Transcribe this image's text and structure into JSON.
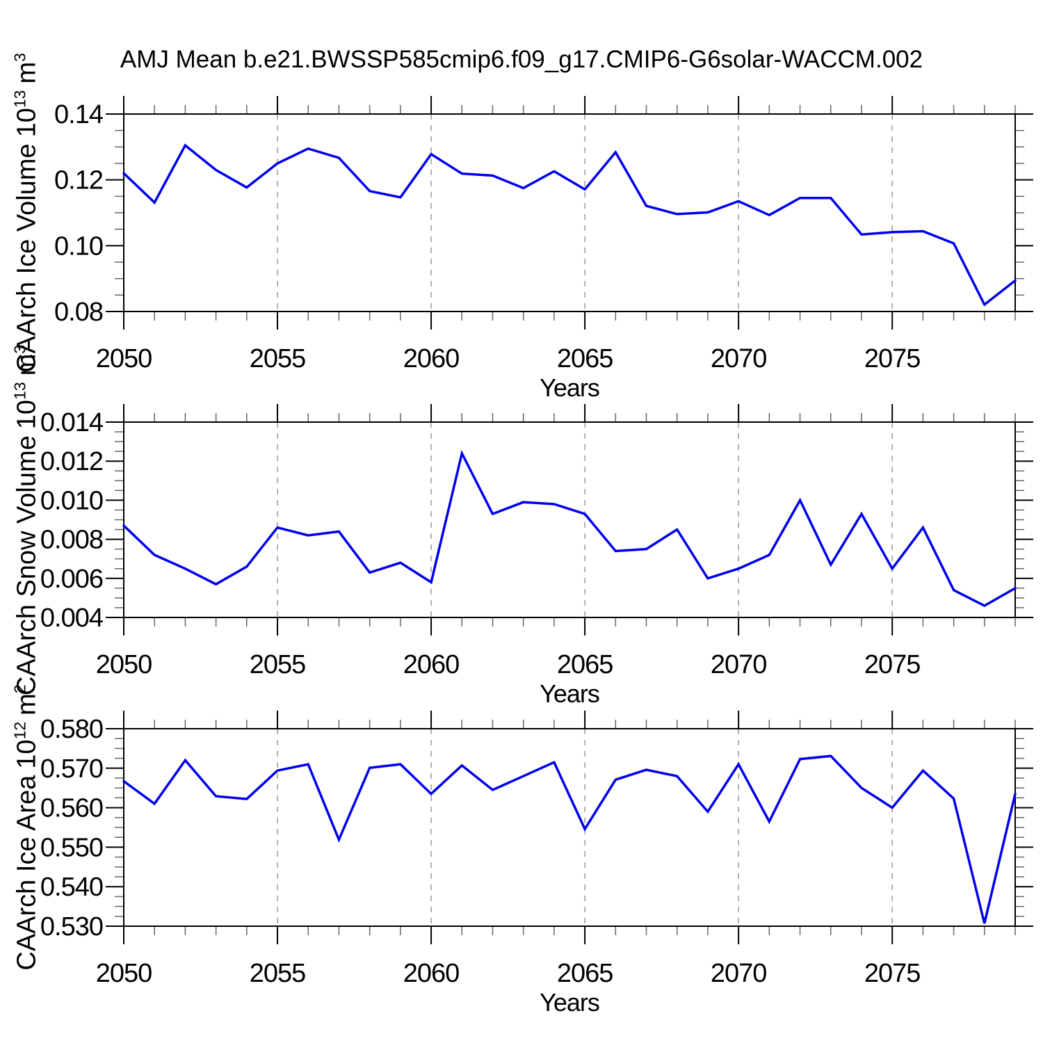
{
  "title": "AMJ Mean b.e21.BWSSP585cmip6.f09_g17.CMIP6-G6solar-WACCM.002",
  "colors": {
    "line": "#0000EE",
    "grid": "#999999",
    "axis": "#000000",
    "minor_tick": "#666666"
  },
  "chart_data": [
    {
      "type": "line",
      "id": "ice-volume",
      "ylabel_main": "CAArch Ice Volume",
      "ylabel_base": "10",
      "ylabel_exp": "13",
      "ylabel_unit": "m",
      "ylabel_unit_exp": "3",
      "xlabel": "Years",
      "xlim": [
        2050,
        2079
      ],
      "ylim": [
        0.08,
        0.14
      ],
      "xticks": [
        2050,
        2055,
        2060,
        2065,
        2070,
        2075
      ],
      "grid_years": [
        2055,
        2060,
        2065,
        2070,
        2075
      ],
      "yticks": [
        0.08,
        0.1,
        0.12,
        0.14
      ],
      "ytick_labels": [
        "0.08",
        "0.10",
        "0.12",
        "0.14"
      ],
      "yminor_step": 0.005,
      "x": [
        2050,
        2051,
        2052,
        2053,
        2054,
        2055,
        2056,
        2057,
        2058,
        2059,
        2060,
        2061,
        2062,
        2063,
        2064,
        2065,
        2066,
        2067,
        2068,
        2069,
        2070,
        2071,
        2072,
        2073,
        2074,
        2075,
        2076,
        2077,
        2078,
        2079
      ],
      "values": [
        0.122,
        0.1131,
        0.1305,
        0.123,
        0.1177,
        0.125,
        0.1295,
        0.1267,
        0.1166,
        0.1147,
        0.1278,
        0.1219,
        0.1213,
        0.1175,
        0.1226,
        0.1171,
        0.1284,
        0.1121,
        0.1096,
        0.1101,
        0.1135,
        0.1093,
        0.1145,
        0.1145,
        0.1034,
        0.1041,
        0.1044,
        0.1007,
        0.0821,
        0.0894
      ]
    },
    {
      "type": "line",
      "id": "snow-volume",
      "ylabel_main": "CAArch Snow Volume",
      "ylabel_base": "10",
      "ylabel_exp": "13",
      "ylabel_unit": "m",
      "ylabel_unit_exp": "3",
      "xlabel": "Years",
      "xlim": [
        2050,
        2079
      ],
      "ylim": [
        0.004,
        0.014
      ],
      "xticks": [
        2050,
        2055,
        2060,
        2065,
        2070,
        2075
      ],
      "grid_years": [
        2055,
        2060,
        2065,
        2070,
        2075
      ],
      "yticks": [
        0.004,
        0.006,
        0.008,
        0.01,
        0.012,
        0.014
      ],
      "ytick_labels": [
        "0.004",
        "0.006",
        "0.008",
        "0.010",
        "0.012",
        "0.014"
      ],
      "yminor_step": 0.0005,
      "x": [
        2050,
        2051,
        2052,
        2053,
        2054,
        2055,
        2056,
        2057,
        2058,
        2059,
        2060,
        2061,
        2062,
        2063,
        2064,
        2065,
        2066,
        2067,
        2068,
        2069,
        2070,
        2071,
        2072,
        2073,
        2074,
        2075,
        2076,
        2077,
        2078,
        2079
      ],
      "values": [
        0.0087,
        0.0072,
        0.0065,
        0.0057,
        0.0066,
        0.0086,
        0.0082,
        0.0084,
        0.0063,
        0.0068,
        0.0058,
        0.0124,
        0.0093,
        0.0099,
        0.0098,
        0.0093,
        0.0074,
        0.0075,
        0.0085,
        0.006,
        0.0065,
        0.0072,
        0.01,
        0.0067,
        0.0093,
        0.0065,
        0.0086,
        0.0054,
        0.0046,
        0.0055
      ]
    },
    {
      "type": "line",
      "id": "ice-area",
      "ylabel_main": "CAArch Ice Area",
      "ylabel_base": "10",
      "ylabel_exp": "12",
      "ylabel_unit": "m",
      "ylabel_unit_exp": "2",
      "xlabel": "Years",
      "xlim": [
        2050,
        2079
      ],
      "ylim": [
        0.53,
        0.58
      ],
      "xticks": [
        2050,
        2055,
        2060,
        2065,
        2070,
        2075
      ],
      "grid_years": [
        2055,
        2060,
        2065,
        2070,
        2075
      ],
      "yticks": [
        0.53,
        0.54,
        0.55,
        0.56,
        0.57,
        0.58
      ],
      "ytick_labels": [
        "0.530",
        "0.540",
        "0.550",
        "0.560",
        "0.570",
        "0.580"
      ],
      "yminor_step": 0.0025,
      "x": [
        2050,
        2051,
        2052,
        2053,
        2054,
        2055,
        2056,
        2057,
        2058,
        2059,
        2060,
        2061,
        2062,
        2063,
        2064,
        2065,
        2066,
        2067,
        2068,
        2069,
        2070,
        2071,
        2072,
        2073,
        2074,
        2075,
        2076,
        2077,
        2078,
        2079
      ],
      "values": [
        0.5667,
        0.561,
        0.572,
        0.5629,
        0.5622,
        0.5694,
        0.571,
        0.5519,
        0.5701,
        0.571,
        0.5635,
        0.5707,
        0.5645,
        0.568,
        0.5715,
        0.5546,
        0.5671,
        0.5696,
        0.568,
        0.559,
        0.571,
        0.5565,
        0.5723,
        0.5731,
        0.565,
        0.56,
        0.5694,
        0.5623,
        0.5307,
        0.5635
      ]
    }
  ]
}
